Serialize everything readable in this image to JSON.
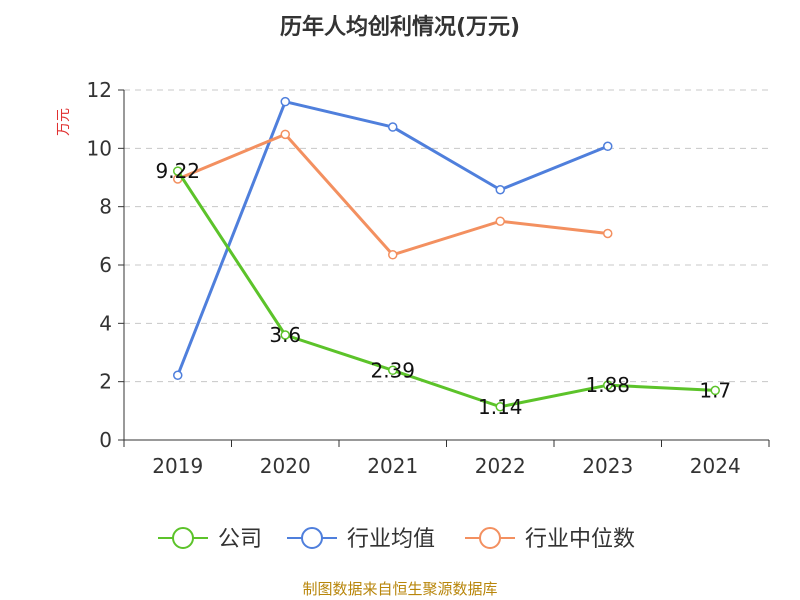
{
  "chart_data": {
    "type": "line",
    "title": "历年人均创利情况(万元)",
    "ylabel": "万元",
    "xlabel": "",
    "categories": [
      "2019",
      "2020",
      "2021",
      "2022",
      "2023",
      "2024"
    ],
    "ylim": [
      0,
      12
    ],
    "yticks": [
      0,
      2,
      4,
      6,
      8,
      10,
      12
    ],
    "grid": true,
    "legend_position": "bottom",
    "series": [
      {
        "name": "公司",
        "color": "#5cc32a",
        "values": [
          9.22,
          3.6,
          2.39,
          1.14,
          1.88,
          1.7
        ],
        "show_labels": true
      },
      {
        "name": "行业均值",
        "color": "#4f7fdc",
        "values": [
          2.22,
          11.6,
          10.73,
          8.58,
          10.07,
          null
        ],
        "show_labels": false
      },
      {
        "name": "行业中位数",
        "color": "#f39060",
        "values": [
          8.95,
          10.48,
          6.35,
          7.5,
          7.08,
          null
        ],
        "show_labels": false
      }
    ],
    "data_labels": [
      "9.22",
      "3.6",
      "2.39",
      "1.14",
      "1.88",
      "1.7"
    ]
  },
  "footer": {
    "source": "制图数据来自恒生聚源数据库"
  }
}
